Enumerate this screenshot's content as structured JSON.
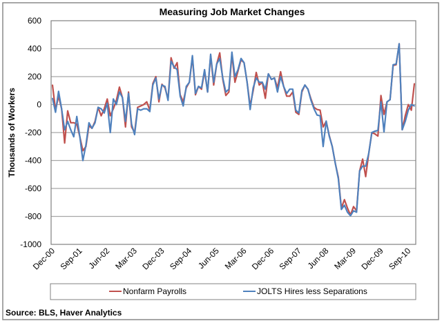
{
  "chart_data": {
    "type": "line",
    "title": "Measuring Job Market Changes",
    "xlabel": "",
    "ylabel": "Thousands of Workers",
    "ylim": [
      -1000,
      600
    ],
    "yticks": [
      600,
      400,
      200,
      0,
      -200,
      -400,
      -600,
      -800,
      -1000
    ],
    "grid": true,
    "legend_position": "bottom",
    "x_start": "Dec-00",
    "x_end": "Nov-10",
    "x_frequency": "monthly",
    "x_tick_labels": [
      "Dec-00",
      "Sep-01",
      "Jun-02",
      "Mar-03",
      "Dec-03",
      "Sep-04",
      "Jun-05",
      "Mar-06",
      "Dec-06",
      "Sep-07",
      "Jun-08",
      "Mar-09",
      "Dec-09",
      "Sep-10"
    ],
    "series": [
      {
        "name": "Nonfarm Payrolls",
        "color": "#C0504D",
        "values": [
          140,
          -40,
          60,
          -30,
          -275,
          -45,
          -130,
          -130,
          -140,
          -230,
          -330,
          -300,
          -150,
          -170,
          -120,
          -20,
          -80,
          -30,
          40,
          -80,
          -30,
          30,
          125,
          50,
          -160,
          90,
          -160,
          -200,
          -20,
          -10,
          0,
          20,
          -40,
          150,
          200,
          20,
          145,
          120,
          40,
          335,
          260,
          300,
          70,
          20,
          120,
          160,
          340,
          70,
          130,
          110,
          240,
          90,
          350,
          140,
          290,
          370,
          180,
          65,
          90,
          360,
          160,
          240,
          320,
          300,
          160,
          -10,
          100,
          230,
          140,
          160,
          45,
          220,
          180,
          190,
          120,
          235,
          130,
          60,
          60,
          90,
          -55,
          -70,
          90,
          140,
          110,
          40,
          -20,
          -35,
          -40,
          -160,
          -120,
          -220,
          -300,
          -420,
          -520,
          -740,
          -680,
          -740,
          -790,
          -730,
          -760,
          -475,
          -390,
          -515,
          -350,
          -200,
          -210,
          -225,
          65,
          -70,
          20,
          35,
          280,
          285,
          435,
          -180,
          -80,
          0,
          -40,
          150
        ]
      },
      {
        "name": "JOLTS Hires less Separations",
        "color": "#4F81BD",
        "values": [
          45,
          -55,
          95,
          -30,
          -180,
          -120,
          -180,
          -230,
          -85,
          -230,
          -400,
          -290,
          -130,
          -170,
          -130,
          -20,
          -30,
          -60,
          10,
          -200,
          40,
          0,
          90,
          50,
          -120,
          80,
          -140,
          -215,
          -30,
          -40,
          -30,
          -30,
          -50,
          140,
          190,
          40,
          140,
          130,
          30,
          310,
          270,
          250,
          60,
          -10,
          130,
          160,
          350,
          80,
          130,
          120,
          250,
          90,
          360,
          160,
          290,
          330,
          190,
          90,
          110,
          375,
          200,
          250,
          330,
          300,
          160,
          -35,
          120,
          190,
          160,
          160,
          110,
          220,
          180,
          190,
          90,
          200,
          130,
          80,
          110,
          110,
          -40,
          -60,
          100,
          140,
          110,
          30,
          -30,
          -75,
          -80,
          -300,
          -118,
          -225,
          -300,
          -420,
          -530,
          -750,
          -720,
          -770,
          -795,
          -760,
          -770,
          -475,
          -440,
          -440,
          -350,
          -200,
          -190,
          -185,
          20,
          -195,
          20,
          35,
          285,
          290,
          435,
          -180,
          -120,
          -40,
          0,
          -10
        ]
      }
    ]
  },
  "source": "Source:  BLS, Haver Analytics"
}
